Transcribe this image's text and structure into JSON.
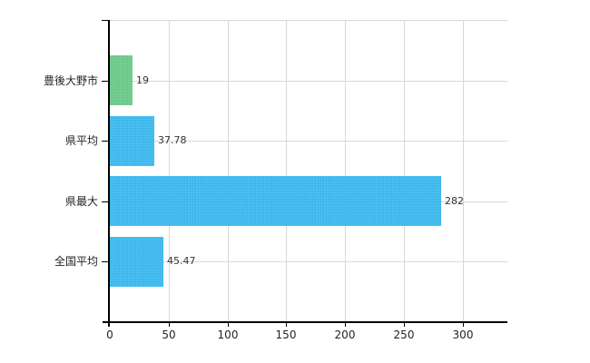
{
  "chart_data": {
    "type": "bar",
    "orientation": "horizontal",
    "title": "",
    "xlabel": "",
    "ylabel": "",
    "categories": [
      "豊後大野市",
      "県平均",
      "県最大",
      "全国平均"
    ],
    "values": [
      19,
      37.78,
      282,
      45.47
    ],
    "value_labels": [
      "19",
      "37.78",
      "282",
      "45.47"
    ],
    "bar_colors": [
      "#6ecb8c",
      "#3ebbf0",
      "#3ebbf0",
      "#3ebbf0"
    ],
    "x_ticks": [
      0,
      50,
      100,
      150,
      200,
      250,
      300
    ],
    "x_tick_labels": [
      "0",
      "50",
      "100",
      "150",
      "200",
      "250",
      "300"
    ],
    "xlim": [
      0,
      338
    ],
    "grid": true,
    "legend": "none"
  },
  "colors": {
    "background": "#ffffff",
    "grid": "#d8d8d8",
    "axis": "#000000",
    "text": "#222222",
    "value_text": "#333333"
  }
}
